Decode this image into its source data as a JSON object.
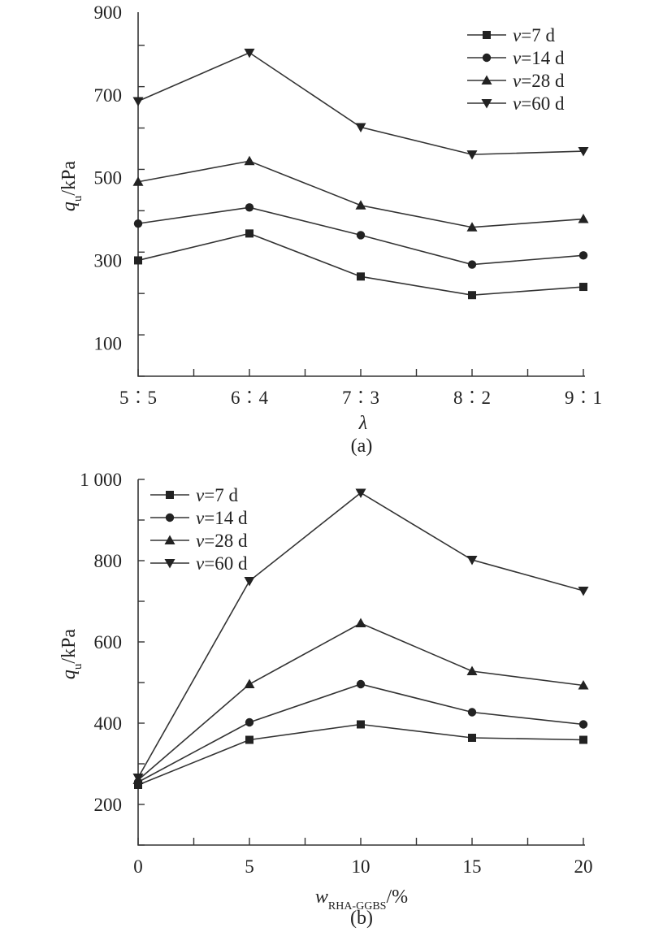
{
  "chart_data": [
    {
      "type": "line",
      "panel_label": "(a)",
      "categories": [
        "5︰5",
        "6︰4",
        "7︰3",
        "8︰2",
        "9︰1"
      ],
      "xlabel": "λ",
      "ylabel_main": "q",
      "ylabel_sub": "u",
      "ylabel_rest": "/kPa",
      "ylim": [
        20,
        900
      ],
      "yticks": [
        100,
        300,
        500,
        700,
        900
      ],
      "yticks_text": [
        "100",
        "300",
        "500",
        "700",
        "900"
      ],
      "legend_position": "top-right",
      "series": [
        {
          "name_var": "v",
          "name_rest": "=7 d",
          "marker": "square",
          "values": [
            300,
            365,
            261,
            216,
            236
          ]
        },
        {
          "name_var": "v",
          "name_rest": "=14 d",
          "marker": "circle",
          "values": [
            389,
            428,
            361,
            290,
            312
          ]
        },
        {
          "name_var": "v",
          "name_rest": "=28 d",
          "marker": "triangle-up",
          "values": [
            490,
            540,
            433,
            380,
            400
          ]
        },
        {
          "name_var": "v",
          "name_rest": "=60 d",
          "marker": "triangle-down",
          "values": [
            685,
            802,
            622,
            556,
            564
          ]
        }
      ]
    },
    {
      "type": "line",
      "panel_label": "(b)",
      "x": [
        0,
        5,
        10,
        15,
        20
      ],
      "xticks_text": [
        "0",
        "5",
        "10",
        "15",
        "20"
      ],
      "xlabel_main": "w",
      "xlabel_sub": "RHA-GGBS",
      "xlabel_rest": "/%",
      "ylabel_main": "q",
      "ylabel_sub": "u",
      "ylabel_rest": "/kPa",
      "ylim": [
        100,
        1000
      ],
      "yticks": [
        200,
        400,
        600,
        800,
        1000
      ],
      "yticks_text": [
        "200",
        "400",
        "600",
        "800",
        "1 000"
      ],
      "legend_position": "top-left",
      "series": [
        {
          "name_var": "v",
          "name_rest": "=7 d",
          "marker": "square",
          "values": [
            248,
            359,
            397,
            364,
            359
          ]
        },
        {
          "name_var": "v",
          "name_rest": "=14 d",
          "marker": "circle",
          "values": [
            255,
            402,
            496,
            427,
            397
          ]
        },
        {
          "name_var": "v",
          "name_rest": "=28 d",
          "marker": "triangle-up",
          "values": [
            260,
            496,
            646,
            528,
            493
          ]
        },
        {
          "name_var": "v",
          "name_rest": "=60 d",
          "marker": "triangle-down",
          "values": [
            266,
            750,
            967,
            802,
            726
          ]
        }
      ]
    }
  ]
}
